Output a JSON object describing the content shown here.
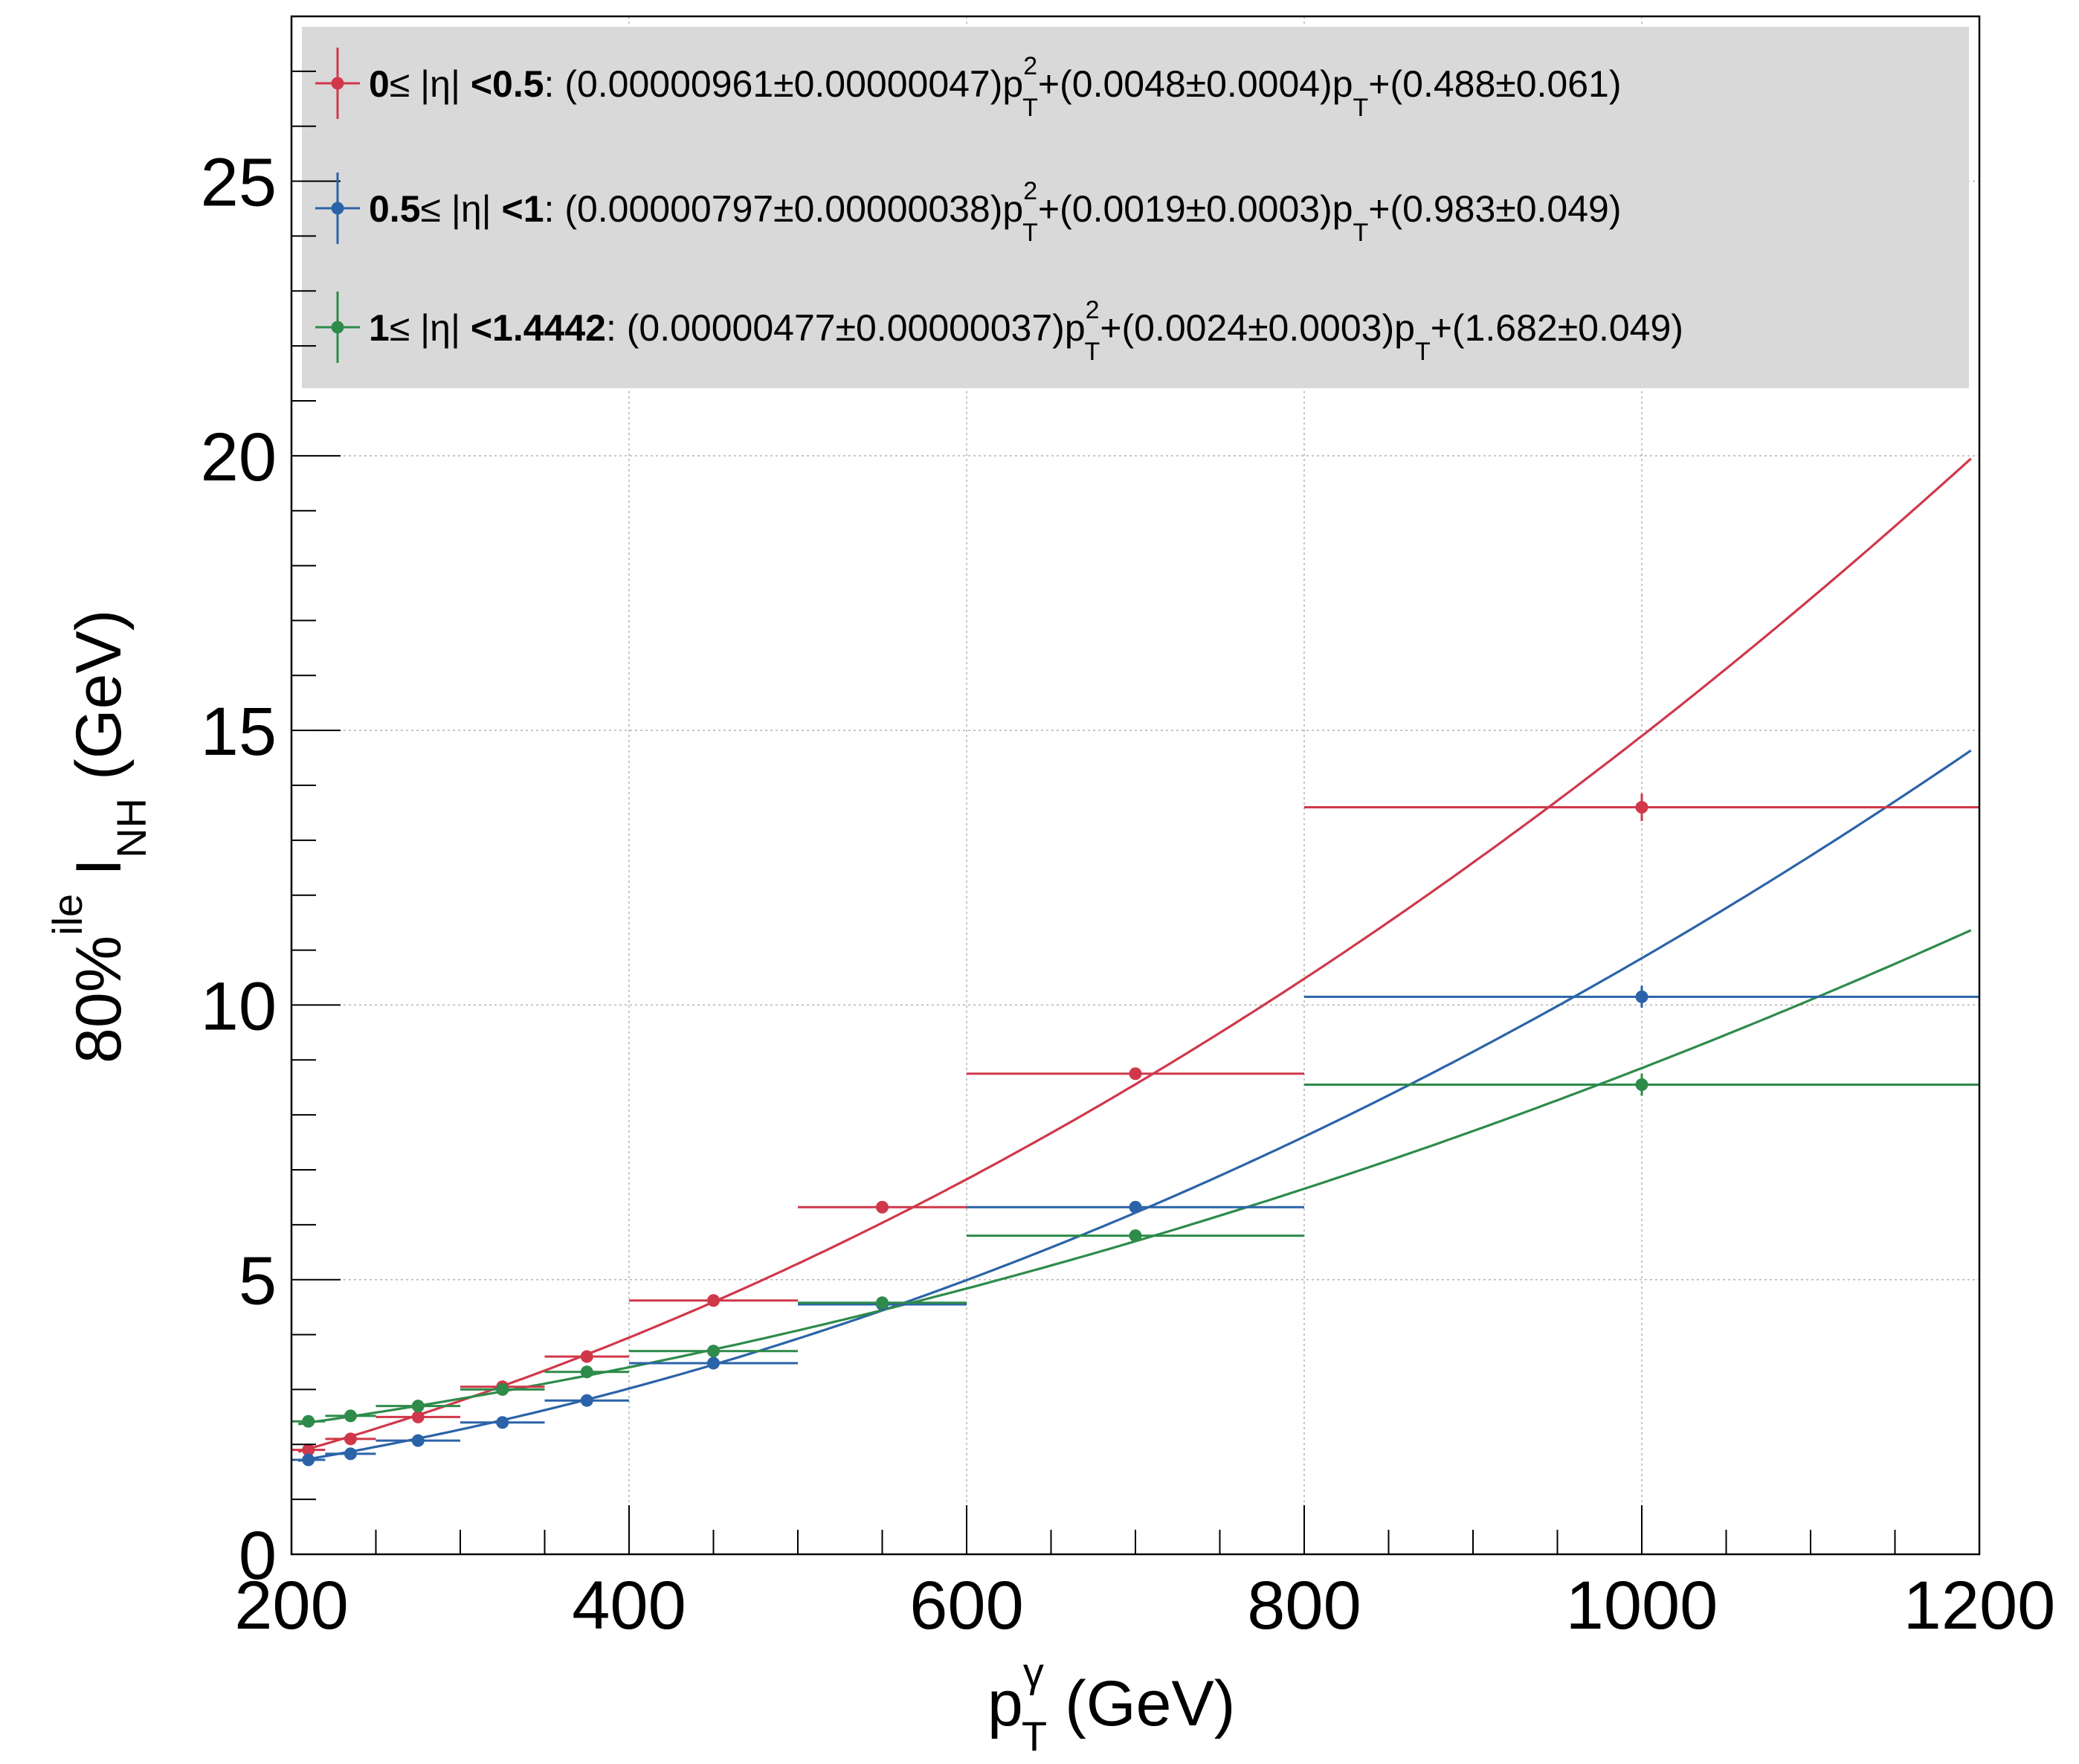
{
  "chart_data": {
    "type": "scatter",
    "x_label": {
      "base": "p",
      "sup": "γ",
      "sub": "T",
      "unit": "(GeV)"
    },
    "y_label": {
      "pre": "80%",
      "sup": "ile",
      "base": "I",
      "sub": "NH",
      "unit": "(GeV)"
    },
    "xlim": [
      200,
      1200
    ],
    "ylim": [
      0,
      28
    ],
    "x_ticks": [
      200,
      400,
      600,
      800,
      1000,
      1200
    ],
    "x_tick_labels": [
      "200",
      "400",
      "600",
      "800",
      "1000",
      "1200"
    ],
    "y_ticks": [
      0,
      5,
      10,
      15,
      20,
      25
    ],
    "y_tick_labels": [
      "0",
      "5",
      "10",
      "15",
      "20",
      "25"
    ],
    "grid": true,
    "legend_placement": "top",
    "series": [
      {
        "color": "#d0384a",
        "legend": {
          "range_lo": "0",
          "range_mid": "≤ |η| ",
          "range_hi": "<0.5",
          "c2": "(0.00000961±0.00000047)p",
          "c1": "+(0.0048±0.0004)p",
          "c0": "+(0.488±0.061)",
          "sup": "2",
          "sub": "T"
        },
        "fit": [
          9.61e-06,
          0.0048,
          0.488
        ],
        "points": [
          {
            "x": 210,
            "y": 1.9,
            "xlo": 200,
            "xhi": 220,
            "ey": 0.05
          },
          {
            "x": 235,
            "y": 2.1,
            "xlo": 220,
            "xhi": 250,
            "ey": 0.05
          },
          {
            "x": 275,
            "y": 2.5,
            "xlo": 250,
            "xhi": 300,
            "ey": 0.05
          },
          {
            "x": 325,
            "y": 3.05,
            "xlo": 300,
            "xhi": 350,
            "ey": 0.06
          },
          {
            "x": 375,
            "y": 3.6,
            "xlo": 350,
            "xhi": 400,
            "ey": 0.06
          },
          {
            "x": 450,
            "y": 4.62,
            "xlo": 400,
            "xhi": 500,
            "ey": 0.07
          },
          {
            "x": 550,
            "y": 6.32,
            "xlo": 500,
            "xhi": 600,
            "ey": 0.08
          },
          {
            "x": 700,
            "y": 8.75,
            "xlo": 600,
            "xhi": 800,
            "ey": 0.1
          },
          {
            "x": 1000,
            "y": 13.6,
            "xlo": 800,
            "xhi": 1200,
            "ey": 0.25
          }
        ]
      },
      {
        "color": "#2b63a8",
        "legend": {
          "range_lo": "0.5",
          "range_mid": "≤ |η| ",
          "range_hi": "<1",
          "c2": "(0.00000797±0.00000038)p",
          "c1": "+(0.0019±0.0003)p",
          "c0": "+(0.983±0.049)",
          "sup": "2",
          "sub": "T"
        },
        "fit": [
          7.97e-06,
          0.0019,
          0.983
        ],
        "points": [
          {
            "x": 210,
            "y": 1.72,
            "xlo": 200,
            "xhi": 220,
            "ey": 0.05
          },
          {
            "x": 235,
            "y": 1.83,
            "xlo": 220,
            "xhi": 250,
            "ey": 0.05
          },
          {
            "x": 275,
            "y": 2.07,
            "xlo": 250,
            "xhi": 300,
            "ey": 0.05
          },
          {
            "x": 325,
            "y": 2.4,
            "xlo": 300,
            "xhi": 350,
            "ey": 0.05
          },
          {
            "x": 375,
            "y": 2.8,
            "xlo": 350,
            "xhi": 400,
            "ey": 0.06
          },
          {
            "x": 450,
            "y": 3.48,
            "xlo": 400,
            "xhi": 500,
            "ey": 0.06
          },
          {
            "x": 550,
            "y": 4.55,
            "xlo": 500,
            "xhi": 600,
            "ey": 0.07
          },
          {
            "x": 700,
            "y": 6.32,
            "xlo": 600,
            "xhi": 800,
            "ey": 0.08
          },
          {
            "x": 1000,
            "y": 10.15,
            "xlo": 800,
            "xhi": 1200,
            "ey": 0.2
          }
        ]
      },
      {
        "color": "#2e8b4a",
        "legend": {
          "range_lo": "1",
          "range_mid": "≤ |η| ",
          "range_hi": "<1.4442",
          "c2": "(0.00000477±0.00000037)p",
          "c1": "+(0.0024±0.0003)p",
          "c0": "+(1.682±0.049)",
          "sup": "2",
          "sub": "T"
        },
        "fit": [
          4.77e-06,
          0.0024,
          1.682
        ],
        "points": [
          {
            "x": 210,
            "y": 2.42,
            "xlo": 200,
            "xhi": 220,
            "ey": 0.05
          },
          {
            "x": 235,
            "y": 2.52,
            "xlo": 220,
            "xhi": 250,
            "ey": 0.05
          },
          {
            "x": 275,
            "y": 2.7,
            "xlo": 250,
            "xhi": 300,
            "ey": 0.05
          },
          {
            "x": 325,
            "y": 3.0,
            "xlo": 300,
            "xhi": 350,
            "ey": 0.05
          },
          {
            "x": 375,
            "y": 3.32,
            "xlo": 350,
            "xhi": 400,
            "ey": 0.06
          },
          {
            "x": 450,
            "y": 3.7,
            "xlo": 400,
            "xhi": 500,
            "ey": 0.06
          },
          {
            "x": 550,
            "y": 4.58,
            "xlo": 500,
            "xhi": 600,
            "ey": 0.07
          },
          {
            "x": 700,
            "y": 5.8,
            "xlo": 600,
            "xhi": 800,
            "ey": 0.08
          },
          {
            "x": 1000,
            "y": 8.55,
            "xlo": 800,
            "xhi": 1200,
            "ey": 0.2
          }
        ]
      }
    ]
  }
}
